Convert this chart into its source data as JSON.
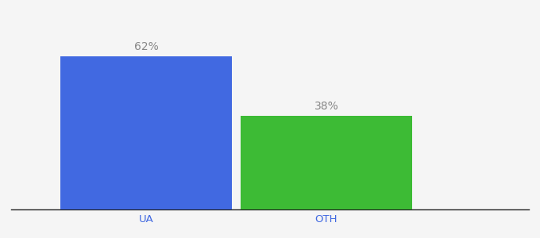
{
  "categories": [
    "UA",
    "OTH"
  ],
  "values": [
    62,
    38
  ],
  "bar_colors": [
    "#4169e1",
    "#3dbb35"
  ],
  "label_texts": [
    "62%",
    "38%"
  ],
  "background_color": "#f5f5f5",
  "ylim": [
    0,
    80
  ],
  "bar_width": 0.38,
  "label_fontsize": 10,
  "tick_fontsize": 9.5,
  "tick_color": "#4169e1",
  "label_color": "#888888",
  "spine_color": "#222222"
}
